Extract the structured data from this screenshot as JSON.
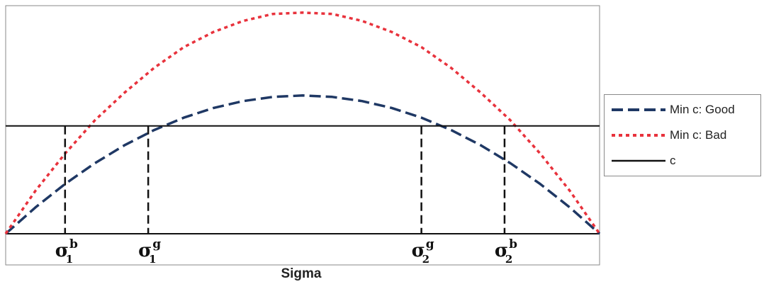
{
  "chart_data": {
    "type": "line",
    "xlabel": "Sigma",
    "series": [
      {
        "name": "Min c: Good",
        "color": "#1f3864",
        "style": "dashed",
        "x": [
          0,
          0.05,
          0.1,
          0.15,
          0.2,
          0.25,
          0.3,
          0.35,
          0.4,
          0.45,
          0.5,
          0.55,
          0.6,
          0.65,
          0.7,
          0.75,
          0.8,
          0.85,
          0.9,
          0.95,
          1.0
        ],
        "y": [
          0,
          0.19,
          0.36,
          0.51,
          0.64,
          0.75,
          0.84,
          0.91,
          0.96,
          0.99,
          1.0,
          0.99,
          0.96,
          0.91,
          0.84,
          0.75,
          0.64,
          0.51,
          0.36,
          0.19,
          0
        ]
      },
      {
        "name": "Min c: Bad",
        "color": "#e8323c",
        "style": "dotted",
        "x": [
          0,
          0.05,
          0.1,
          0.15,
          0.2,
          0.25,
          0.3,
          0.35,
          0.4,
          0.45,
          0.5,
          0.55,
          0.6,
          0.65,
          0.7,
          0.75,
          0.8,
          0.85,
          0.9,
          0.95,
          1.0
        ],
        "y": [
          0,
          0.31,
          0.58,
          0.82,
          1.02,
          1.2,
          1.35,
          1.46,
          1.54,
          1.59,
          1.6,
          1.59,
          1.54,
          1.46,
          1.35,
          1.2,
          1.02,
          0.82,
          0.58,
          0.31,
          0
        ]
      },
      {
        "name": "c",
        "color": "#111111",
        "style": "solid",
        "x": [
          0,
          1.0
        ],
        "y": [
          0.78,
          0.78
        ]
      }
    ],
    "markers": [
      {
        "label": "σ",
        "sup": "b",
        "sub": "1",
        "x": 0.1
      },
      {
        "label": "σ",
        "sup": "g",
        "sub": "1",
        "x": 0.24
      },
      {
        "label": "σ",
        "sup": "g",
        "sub": "2",
        "x": 0.7
      },
      {
        "label": "σ",
        "sup": "b",
        "sub": "2",
        "x": 0.84
      }
    ],
    "xlim": [
      0,
      1
    ],
    "ylim": [
      0,
      1.65
    ],
    "grid": false,
    "legend_position": "right"
  }
}
